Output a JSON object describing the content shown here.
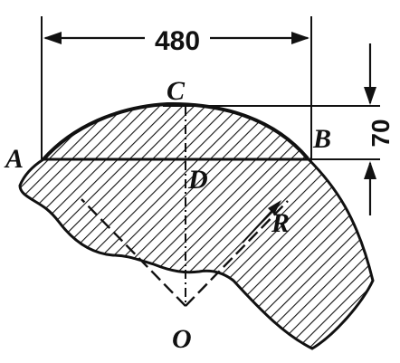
{
  "figure": {
    "points": {
      "a": "A",
      "b": "B",
      "c": "C",
      "d": "D",
      "o": "O"
    },
    "radius_label": "R",
    "dimensions": {
      "chord_width": "480",
      "arc_height": "70"
    },
    "colors": {
      "ink": "#111111",
      "background": "#ffffff"
    }
  }
}
